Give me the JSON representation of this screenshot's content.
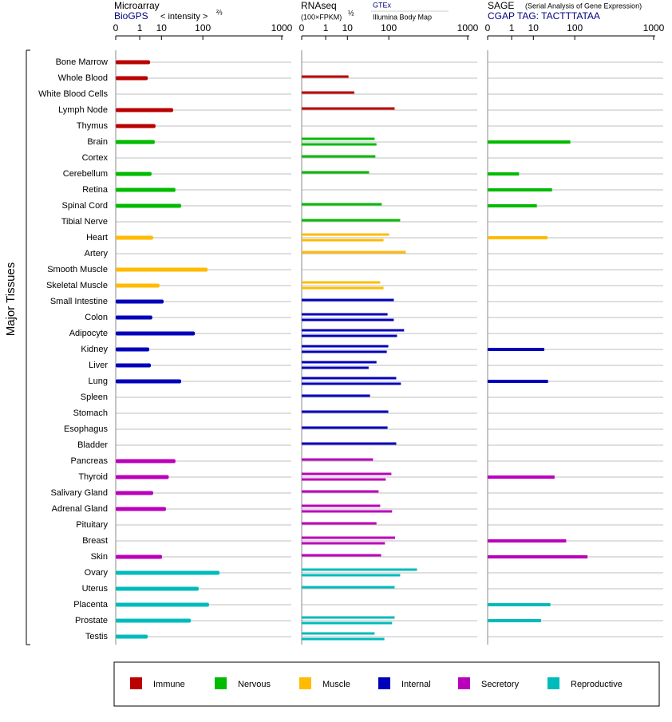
{
  "chart_data": {
    "type": "hbar-panels",
    "y_axis_label": "Major Tissues",
    "categories": [
      "Bone Marrow",
      "Whole Blood",
      "White Blood Cells",
      "Lymph Node",
      "Thymus",
      "Brain",
      "Cortex",
      "Cerebellum",
      "Retina",
      "Spinal Cord",
      "Tibial Nerve",
      "Heart",
      "Artery",
      "Smooth Muscle",
      "Skeletal Muscle",
      "Small Intestine",
      "Colon",
      "Adipocyte",
      "Kidney",
      "Liver",
      "Lung",
      "Spleen",
      "Stomach",
      "Esophagus",
      "Bladder",
      "Pancreas",
      "Thyroid",
      "Salivary Gland",
      "Adrenal Gland",
      "Pituitary",
      "Breast",
      "Skin",
      "Ovary",
      "Uterus",
      "Placenta",
      "Prostate",
      "Testis"
    ],
    "category_group": [
      0,
      0,
      0,
      0,
      0,
      1,
      1,
      1,
      1,
      1,
      1,
      2,
      2,
      2,
      2,
      3,
      3,
      3,
      3,
      3,
      3,
      3,
      3,
      3,
      3,
      4,
      4,
      4,
      4,
      4,
      4,
      4,
      5,
      5,
      5,
      5,
      5
    ],
    "groups": [
      {
        "name": "Immune",
        "color": "#bb0000"
      },
      {
        "name": "Nervous",
        "color": "#00bb00"
      },
      {
        "name": "Muscle",
        "color": "#ffbb00"
      },
      {
        "name": "Internal",
        "color": "#0000bb"
      },
      {
        "name": "Secretory",
        "color": "#bb00bb"
      },
      {
        "name": "Reproductive",
        "color": "#00bbbb"
      }
    ],
    "xscale": "power",
    "xlim": [
      0,
      1000
    ],
    "xticks": [
      0,
      1,
      10,
      100,
      1000
    ],
    "panels": [
      {
        "title": "Microarray",
        "unit": "< intensity >",
        "unit_power": "⅔",
        "series": [
          {
            "name": "BioGPS",
            "values": [
              3.6,
              2.8,
              null,
              22.6,
              6.1,
              5.7,
              null,
              4.2,
              26,
              36,
              null,
              4.9,
              null,
              121,
              8.6,
              11.8,
              4.5,
              71,
              3.3,
              3.9,
              36,
              null,
              null,
              null,
              null,
              26,
              17,
              4.9,
              14,
              null,
              null,
              10.5,
              187,
              84,
              128,
              59,
              2.8
            ]
          }
        ]
      },
      {
        "title": "RNAseq",
        "unit": "(100×FPKM)",
        "unit_power": "½",
        "series": [
          {
            "name": "GTEx",
            "values": [
              null,
              10.9,
              16.5,
              126,
              null,
              53,
              55,
              40,
              null,
              74,
              155,
              101,
              189,
              null,
              69,
              122,
              95,
              178,
              98,
              58,
              134,
              42,
              98,
              95,
              134,
              49,
              111,
              64,
              69,
              58,
              128,
              72,
              272,
              126,
              null,
              126,
              53
            ]
          },
          {
            "name": "Illumina Body Map",
            "values": [
              null,
              null,
              null,
              null,
              null,
              58,
              null,
              null,
              null,
              null,
              null,
              80,
              null,
              null,
              80,
              null,
              122,
              138,
              92,
              39,
              159,
              null,
              null,
              null,
              null,
              null,
              88,
              null,
              114,
              null,
              85,
              null,
              155,
              null,
              null,
              114,
              83
            ]
          }
        ]
      },
      {
        "title": "SAGE",
        "subtitle": "(Serial Analysis of Gene Expression)",
        "series": [
          {
            "name": "CGAP TAG: TACTTTATAA",
            "values": [
              null,
              null,
              null,
              null,
              null,
              83,
              null,
              2.6,
              34,
              13,
              null,
              26,
              null,
              null,
              null,
              null,
              null,
              null,
              21.5,
              null,
              27,
              null,
              null,
              null,
              null,
              null,
              39,
              null,
              null,
              null,
              69,
              163,
              null,
              null,
              31,
              17.5,
              null
            ]
          }
        ]
      }
    ]
  }
}
